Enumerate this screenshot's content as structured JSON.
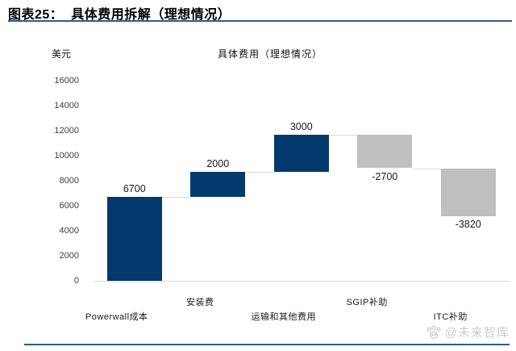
{
  "header": {
    "title": "图表25：  具体费用拆解（理想情况）"
  },
  "watermark": {
    "icon": "paw-logo",
    "text": "@未来智库",
    "color": "#c9cdd2"
  },
  "rules": {
    "color": "#2e5e86"
  },
  "chart_data": {
    "type": "bar",
    "subtype": "waterfall",
    "title": "具体费用（理想情况）",
    "ylabel": "美元",
    "categories": [
      "Powerwall成本",
      "安装费",
      "运输和其他费用",
      "SGIP补助",
      "ITC补助"
    ],
    "values": [
      6700,
      2000,
      3000,
      -2700,
      -3820
    ],
    "running_totals": [
      6700,
      8700,
      11700,
      9000,
      5180
    ],
    "data_labels": [
      "6700",
      "2000",
      "3000",
      "-2700",
      "-3820"
    ],
    "yticks": [
      0,
      2000,
      4000,
      6000,
      8000,
      10000,
      12000,
      14000,
      16000
    ],
    "ylim": [
      0,
      16000
    ],
    "ytick_step": 2000,
    "grid": false,
    "legend": "none",
    "colors": {
      "increase": "#04396e",
      "decrease": "#bfbfbf",
      "connector": "#d9d9d9",
      "axis_line": "#d9d9d9",
      "tick_text": "#3f3f3f",
      "label_text": "#1a1a1a"
    }
  }
}
